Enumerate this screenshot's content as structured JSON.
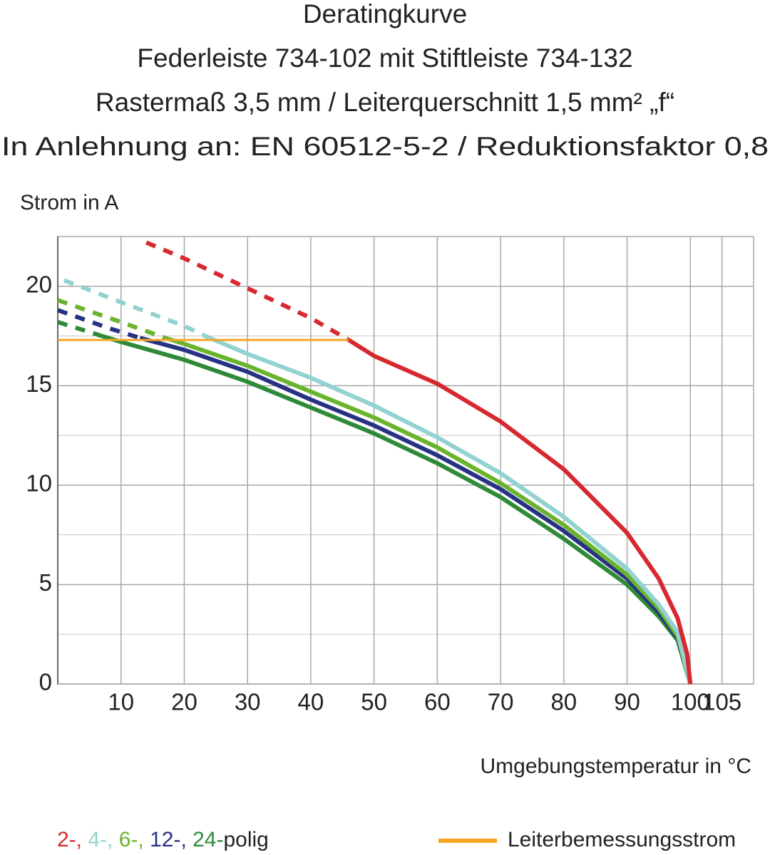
{
  "chart_data": {
    "type": "line",
    "title": [
      "Deratingkurve",
      "Federleiste 734-102 mit Stiftleiste 734-132",
      "Rastermaß 3,5 mm / Leiterquerschnitt 1,5 mm² „f“",
      "In Anlehnung an: EN 60512-5-2 / Reduktionsfaktor 0,8"
    ],
    "y_label": "Strom in A",
    "x_label": "Umgebungstemperatur in °C",
    "xlim": [
      0,
      110
    ],
    "xticks": [
      10,
      20,
      30,
      40,
      50,
      60,
      70,
      80,
      90,
      100,
      105
    ],
    "ylim": [
      0,
      22.5
    ],
    "yticks": [
      0,
      5,
      10,
      15,
      20
    ],
    "yminor": [
      2.5,
      7.5,
      12.5,
      17.5
    ],
    "grid": true,
    "series": [
      {
        "name": "2-,",
        "color": "#d7282f",
        "x": [
          14,
          20,
          30,
          40,
          46,
          50,
          60,
          70,
          80,
          90,
          95,
          98,
          99.5,
          100
        ],
        "values": [
          22.2,
          21.4,
          19.9,
          18.4,
          17.3,
          16.5,
          15.1,
          13.2,
          10.8,
          7.6,
          5.3,
          3.3,
          1.5,
          0
        ]
      },
      {
        "name": "4-,",
        "color": "#92d2d0",
        "x": [
          1,
          10,
          20,
          24,
          30,
          40,
          50,
          60,
          70,
          80,
          90,
          95,
          98,
          100
        ],
        "values": [
          20.3,
          19.2,
          18.0,
          17.4,
          16.6,
          15.4,
          14.0,
          12.4,
          10.6,
          8.4,
          5.8,
          4.0,
          2.6,
          0
        ]
      },
      {
        "name": "6-,",
        "color": "#6ab42d",
        "x": [
          0,
          10,
          17,
          20,
          30,
          40,
          50,
          60,
          70,
          80,
          90,
          95,
          98,
          100
        ],
        "values": [
          19.3,
          18.2,
          17.4,
          17.1,
          16.0,
          14.7,
          13.4,
          11.9,
          10.1,
          8.0,
          5.5,
          3.8,
          2.4,
          0
        ]
      },
      {
        "name": "12-,",
        "color": "#283282",
        "x": [
          0,
          8,
          13,
          20,
          30,
          40,
          50,
          60,
          70,
          80,
          90,
          95,
          98,
          100
        ],
        "values": [
          18.8,
          17.9,
          17.4,
          16.8,
          15.7,
          14.3,
          13.0,
          11.5,
          9.8,
          7.7,
          5.3,
          3.6,
          2.3,
          0
        ]
      },
      {
        "name": "24-",
        "color": "#2f8a38",
        "x": [
          0,
          7,
          10,
          20,
          30,
          40,
          50,
          60,
          70,
          80,
          90,
          95,
          98,
          100
        ],
        "values": [
          18.2,
          17.5,
          17.2,
          16.3,
          15.2,
          13.9,
          12.6,
          11.1,
          9.4,
          7.3,
          5.0,
          3.4,
          2.2,
          0
        ]
      }
    ],
    "legend_suffix": "polig",
    "rated": {
      "name": "Leiterbemessungsstrom",
      "color": "#f5a623",
      "x": [
        0,
        46
      ],
      "values": [
        17.3,
        17.3
      ]
    }
  }
}
